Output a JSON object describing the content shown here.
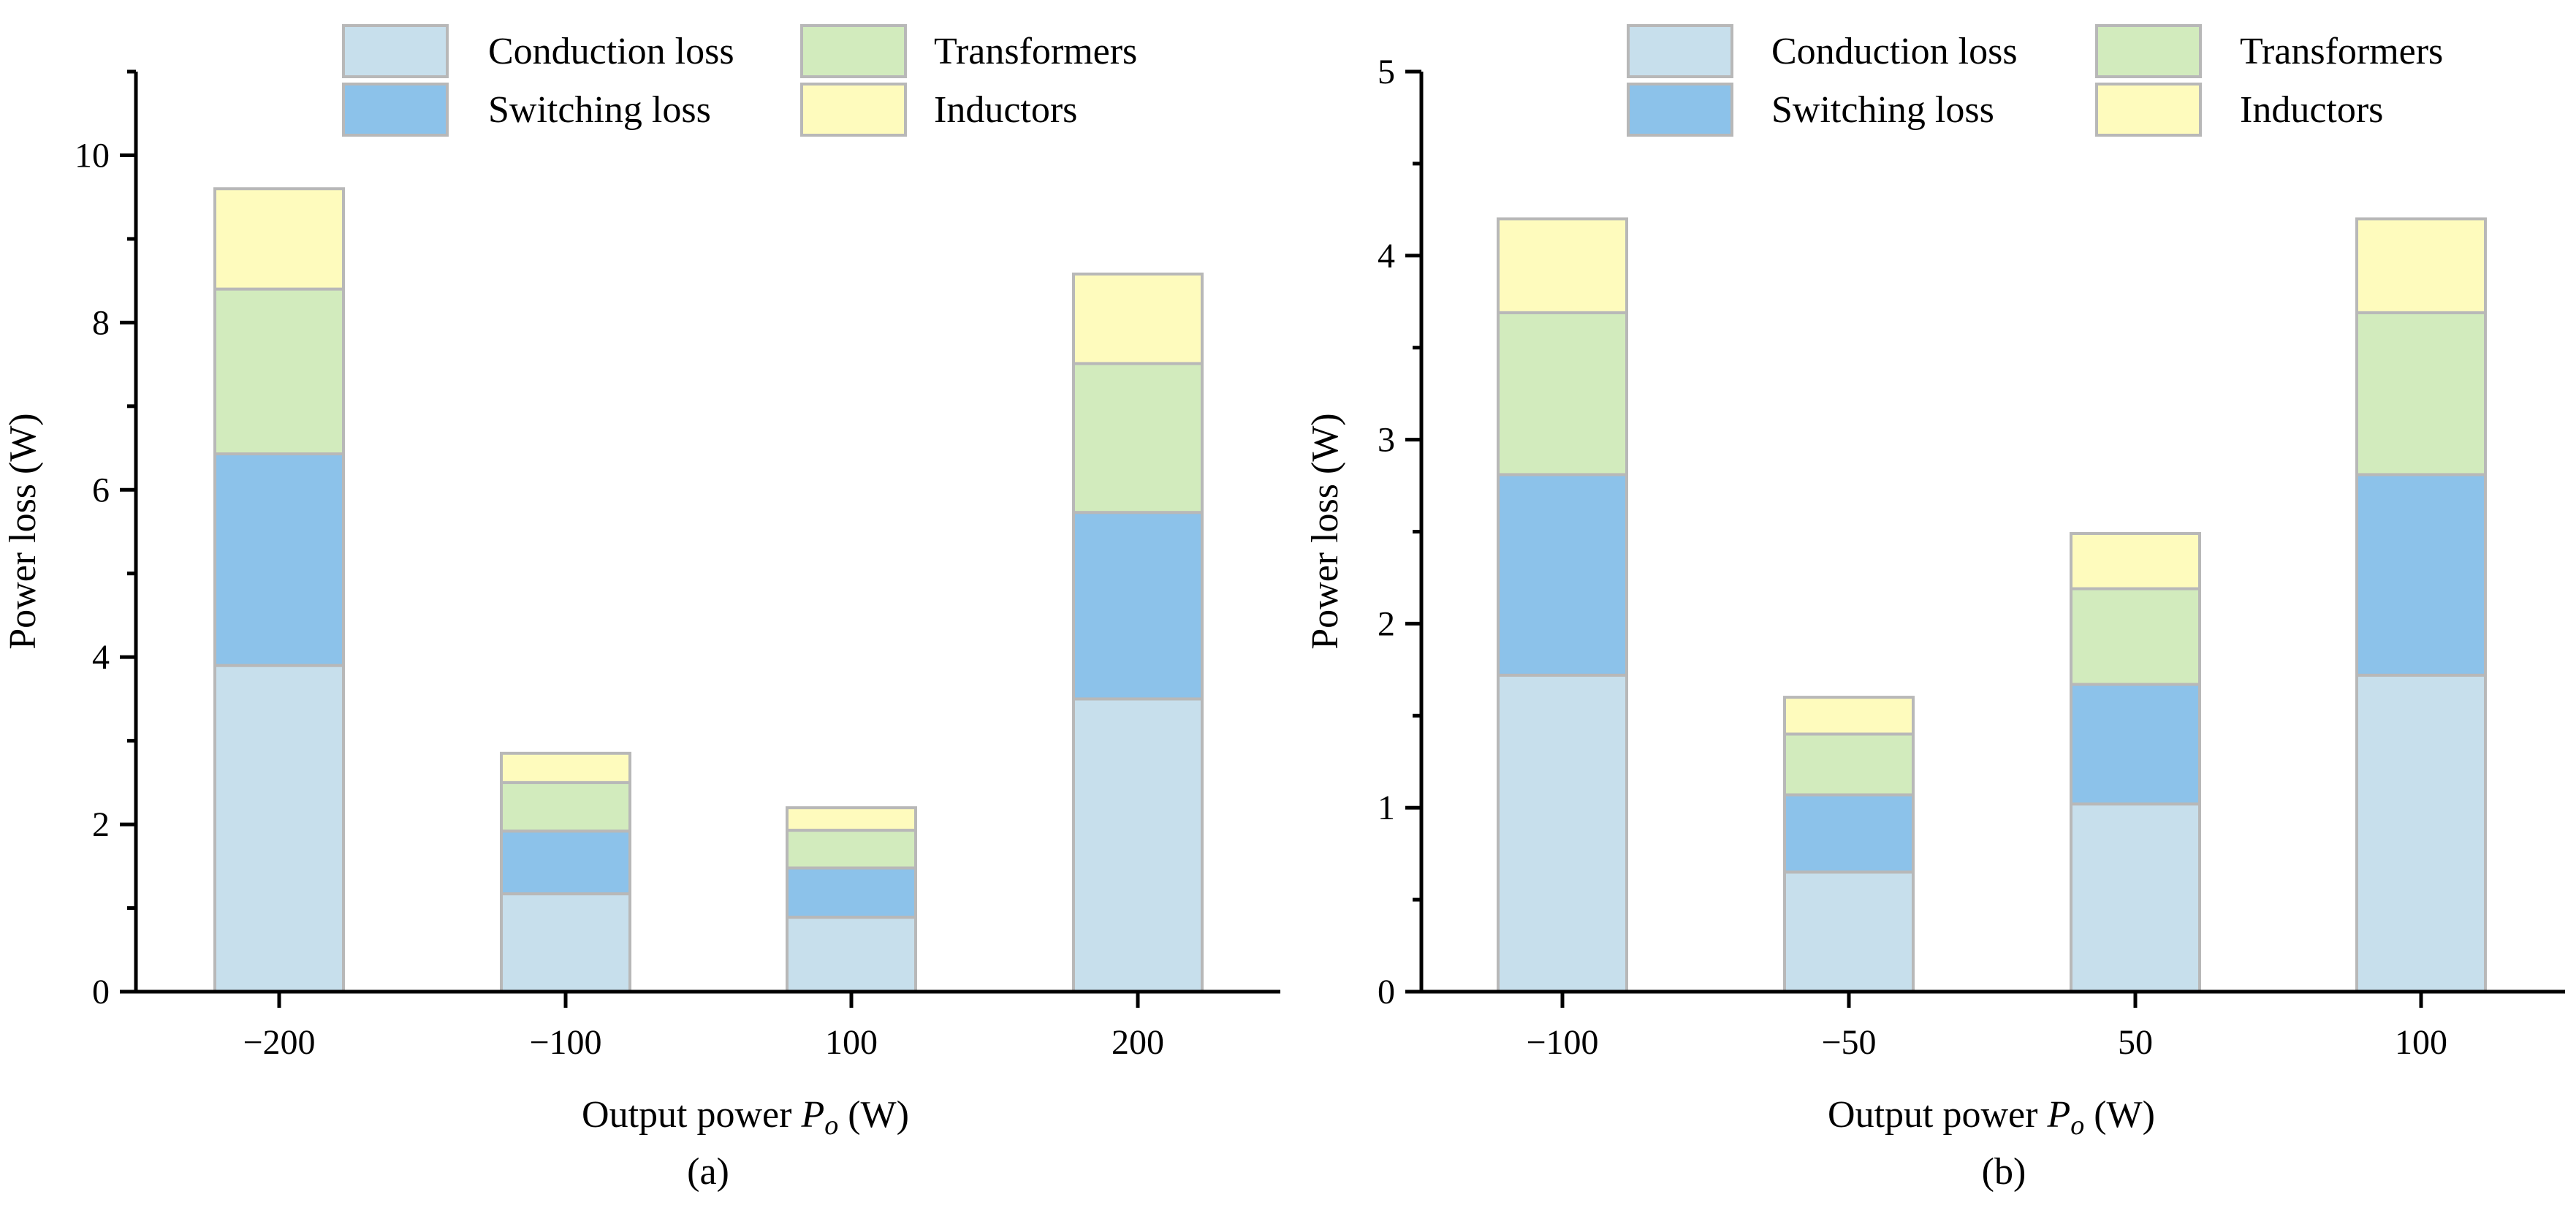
{
  "colors": {
    "conduction": "#c7dfec",
    "switching": "#8cc2ea",
    "transformers": "#d2ebbd",
    "inductors": "#fefbbd",
    "bar_edge": "#b8b8b8",
    "axis": "#000000"
  },
  "legend": [
    "Conduction loss",
    "Switching loss",
    "Transformers",
    "Inductors"
  ],
  "chart_data": [
    {
      "type": "bar",
      "stacked": true,
      "panel_label": "(a)",
      "title": "",
      "xlabel": "Output power",
      "xlabel_symbol": "P",
      "xlabel_subscript": "o",
      "xlabel_unit": "(W)",
      "ylabel": "Power loss (W)",
      "ylim": [
        0,
        11
      ],
      "yticks": [
        0,
        2,
        4,
        6,
        8,
        10
      ],
      "categories": [
        "−200",
        "−100",
        "100",
        "200"
      ],
      "series": [
        {
          "name": "Conduction loss",
          "values": [
            3.9,
            1.17,
            0.89,
            3.5
          ]
        },
        {
          "name": "Switching loss",
          "values": [
            2.53,
            0.75,
            0.59,
            2.23
          ]
        },
        {
          "name": "Transformers",
          "values": [
            1.97,
            0.58,
            0.45,
            1.78
          ]
        },
        {
          "name": "Inductors",
          "values": [
            1.2,
            0.35,
            0.27,
            1.07
          ]
        }
      ]
    },
    {
      "type": "bar",
      "stacked": true,
      "panel_label": "(b)",
      "title": "",
      "xlabel": "Output power",
      "xlabel_symbol": "P",
      "xlabel_subscript": "o",
      "xlabel_unit": "(W)",
      "ylabel": "Power loss (W)",
      "ylim": [
        0,
        5
      ],
      "yticks": [
        0,
        1,
        2,
        3,
        4,
        5
      ],
      "categories": [
        "−100",
        "−50",
        "50",
        "100"
      ],
      "series": [
        {
          "name": "Conduction loss",
          "values": [
            1.72,
            0.65,
            1.02,
            1.72
          ]
        },
        {
          "name": "Switching loss",
          "values": [
            1.09,
            0.42,
            0.65,
            1.09
          ]
        },
        {
          "name": "Transformers",
          "values": [
            0.88,
            0.33,
            0.52,
            0.88
          ]
        },
        {
          "name": "Inductors",
          "values": [
            0.51,
            0.2,
            0.3,
            0.51
          ]
        }
      ]
    }
  ]
}
